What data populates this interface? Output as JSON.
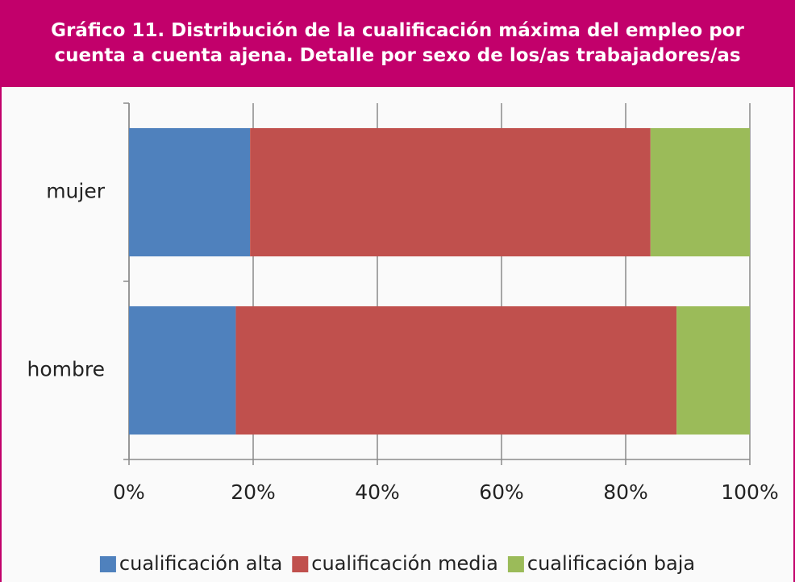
{
  "chart_data": {
    "type": "stacked_barh",
    "title": "Gráfico 11. Distribución de la cualificación máxima del empleo por cuenta a cuenta ajena. Detalle por sexo de los/as trabajadores/as",
    "categories": [
      "mujer",
      "hombre"
    ],
    "series": [
      {
        "name": "cualificación alta",
        "color": "#4f81bd",
        "values": [
          19.5,
          17.2
        ]
      },
      {
        "name": "cualificación media",
        "color": "#c0504d",
        "values": [
          64.5,
          71
        ]
      },
      {
        "name": "cualificación baja",
        "color": "#9bbb59",
        "values": [
          16,
          11.8
        ]
      }
    ],
    "xlim": [
      0,
      100
    ],
    "xticks": [
      {
        "value": 0,
        "label": "0%"
      },
      {
        "value": 20,
        "label": "20%"
      },
      {
        "value": 40,
        "label": "40%"
      },
      {
        "value": 60,
        "label": "60%"
      },
      {
        "value": 80,
        "label": "80%"
      },
      {
        "value": 100,
        "label": "100%"
      }
    ],
    "grid": true,
    "legend": "bottom"
  }
}
